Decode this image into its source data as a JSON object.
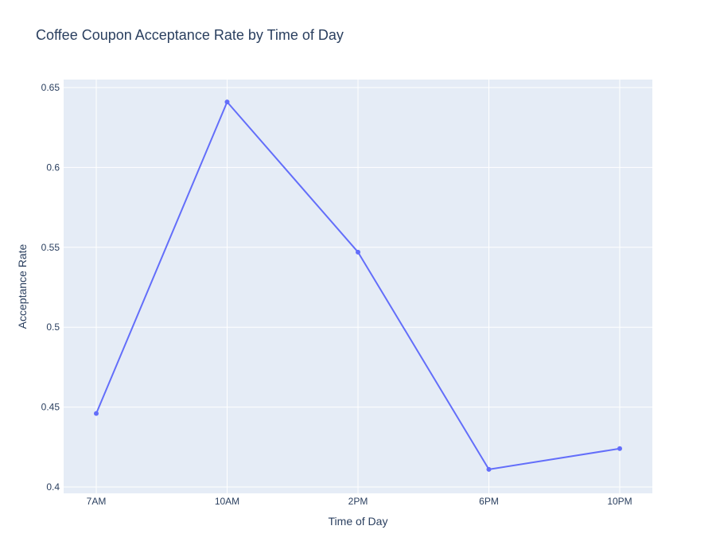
{
  "chart_data": {
    "type": "line",
    "title": "Coffee Coupon Acceptance Rate by Time of Day",
    "xlabel": "Time of Day",
    "ylabel": "Acceptance Rate",
    "categories": [
      "7AM",
      "10AM",
      "2PM",
      "6PM",
      "10PM"
    ],
    "series": [
      {
        "values": [
          0.446,
          0.641,
          0.547,
          0.411,
          0.424
        ]
      }
    ],
    "ylim": [
      0.396,
      0.655
    ],
    "yticks": [
      0.4,
      0.45,
      0.5,
      0.55,
      0.6,
      0.65
    ],
    "ytick_labels": [
      "0.4",
      "0.45",
      "0.5",
      "0.55",
      "0.6",
      "0.65"
    ],
    "grid": true,
    "colors": {
      "line": "#636efa",
      "plot_background": "#e5ecf6",
      "grid": "#ffffff",
      "text": "#2a3f5f"
    }
  }
}
